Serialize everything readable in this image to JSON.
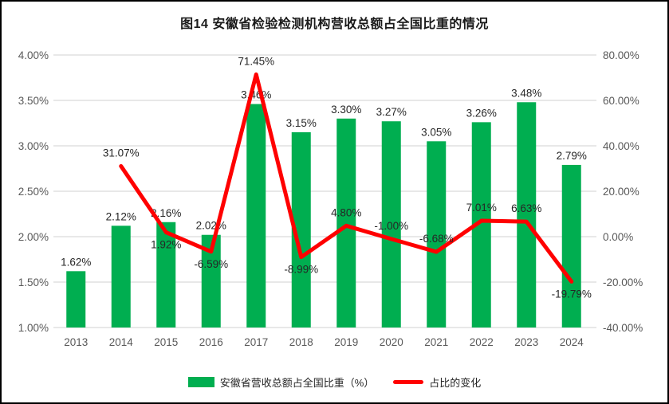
{
  "chart_data": {
    "type": "bar+line-combo",
    "title": "图14 安徽省检验检测机构营收总额占全国比重的情况",
    "categories": [
      "2013",
      "2014",
      "2015",
      "2016",
      "2017",
      "2018",
      "2019",
      "2020",
      "2021",
      "2022",
      "2023",
      "2024"
    ],
    "series": [
      {
        "name": "安徽省营收总额占全国比重（%）",
        "type": "bar",
        "axis": "left",
        "color": "#00AE50",
        "values": [
          1.62,
          2.12,
          2.16,
          2.02,
          3.46,
          3.15,
          3.3,
          3.27,
          3.05,
          3.26,
          3.48,
          2.79
        ],
        "labels": [
          "1.62%",
          "2.12%",
          "2.16%",
          "2.02%",
          "3.46%",
          "3.15%",
          "3.30%",
          "3.27%",
          "3.05%",
          "3.26%",
          "3.48%",
          "2.79%"
        ]
      },
      {
        "name": "占比的变化",
        "type": "line",
        "axis": "right",
        "color": "#FF0000",
        "values": [
          null,
          31.07,
          1.92,
          -6.59,
          71.45,
          -8.99,
          4.8,
          -1.0,
          -6.68,
          7.01,
          6.63,
          -19.79
        ],
        "labels": [
          null,
          "31.07%",
          "1.92%",
          "-6.59%",
          "71.45%",
          "-8.99%",
          "4.80%",
          "-1.00%",
          "-6.68%",
          "7.01%",
          "6.63%",
          "-19.79%"
        ],
        "label_below": [
          false,
          false,
          true,
          true,
          false,
          true,
          false,
          false,
          false,
          false,
          false,
          true
        ]
      }
    ],
    "left_axis": {
      "min": 1.0,
      "max": 4.0,
      "step": 0.5,
      "ticks": [
        "4.00%",
        "3.50%",
        "3.00%",
        "2.50%",
        "2.00%",
        "1.50%",
        "1.00%"
      ]
    },
    "right_axis": {
      "min": -40,
      "max": 80,
      "step": 20,
      "ticks": [
        "80.00%",
        "60.00%",
        "40.00%",
        "20.00%",
        "0.00%",
        "-20.00%",
        "-40.00%"
      ]
    },
    "grid": true,
    "legend_position": "bottom",
    "colors": {
      "grid_line": "#D9D9D9",
      "axis_text": "#595959",
      "data_label": "#262626",
      "title_text": "#1a1a1a"
    }
  }
}
